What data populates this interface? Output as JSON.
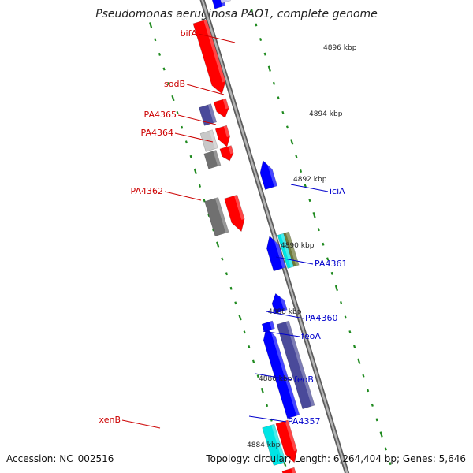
{
  "title": "Pseudomonas aeruginosa PAO1, complete genome",
  "footer": {
    "accession": "Accession: NC_002516",
    "summary": "Topology: circular; Length: 6,264,404 bp; Genes: 5,646"
  },
  "colors": {
    "backbone": "#8a8a8a",
    "tick": "#1f8a1f",
    "label_forward": "#cc0000",
    "label_reverse": "#0000cc",
    "forward_strand": "#ff0000",
    "reverse_strand": "#0000ff",
    "gray_gene": "#707070",
    "light_gray_gene": "#c8c8c8",
    "purple_gene": "#4a4a9a",
    "cyan_gene": "#00e5e5",
    "olive_gene": "#6e7a3a"
  },
  "scale_labels": [
    "4896 kbp",
    "4894 kbp",
    "4892 kbp",
    "4890 kbp",
    "4888 kbp",
    "4886 kbp",
    "4884 kbp"
  ],
  "gene_labels": [
    {
      "text": "bifA",
      "strand": "forward"
    },
    {
      "text": "sodB",
      "strand": "forward"
    },
    {
      "text": "PA4365",
      "strand": "forward"
    },
    {
      "text": "PA4364",
      "strand": "forward"
    },
    {
      "text": "PA4362",
      "strand": "forward"
    },
    {
      "text": "xenB",
      "strand": "forward"
    },
    {
      "text": "iciA",
      "strand": "reverse"
    },
    {
      "text": "PA4361",
      "strand": "reverse"
    },
    {
      "text": "PA4360",
      "strand": "reverse"
    },
    {
      "text": "feoA",
      "strand": "reverse"
    },
    {
      "text": "feoB",
      "strand": "reverse"
    },
    {
      "text": "PA4357",
      "strand": "reverse"
    }
  ]
}
